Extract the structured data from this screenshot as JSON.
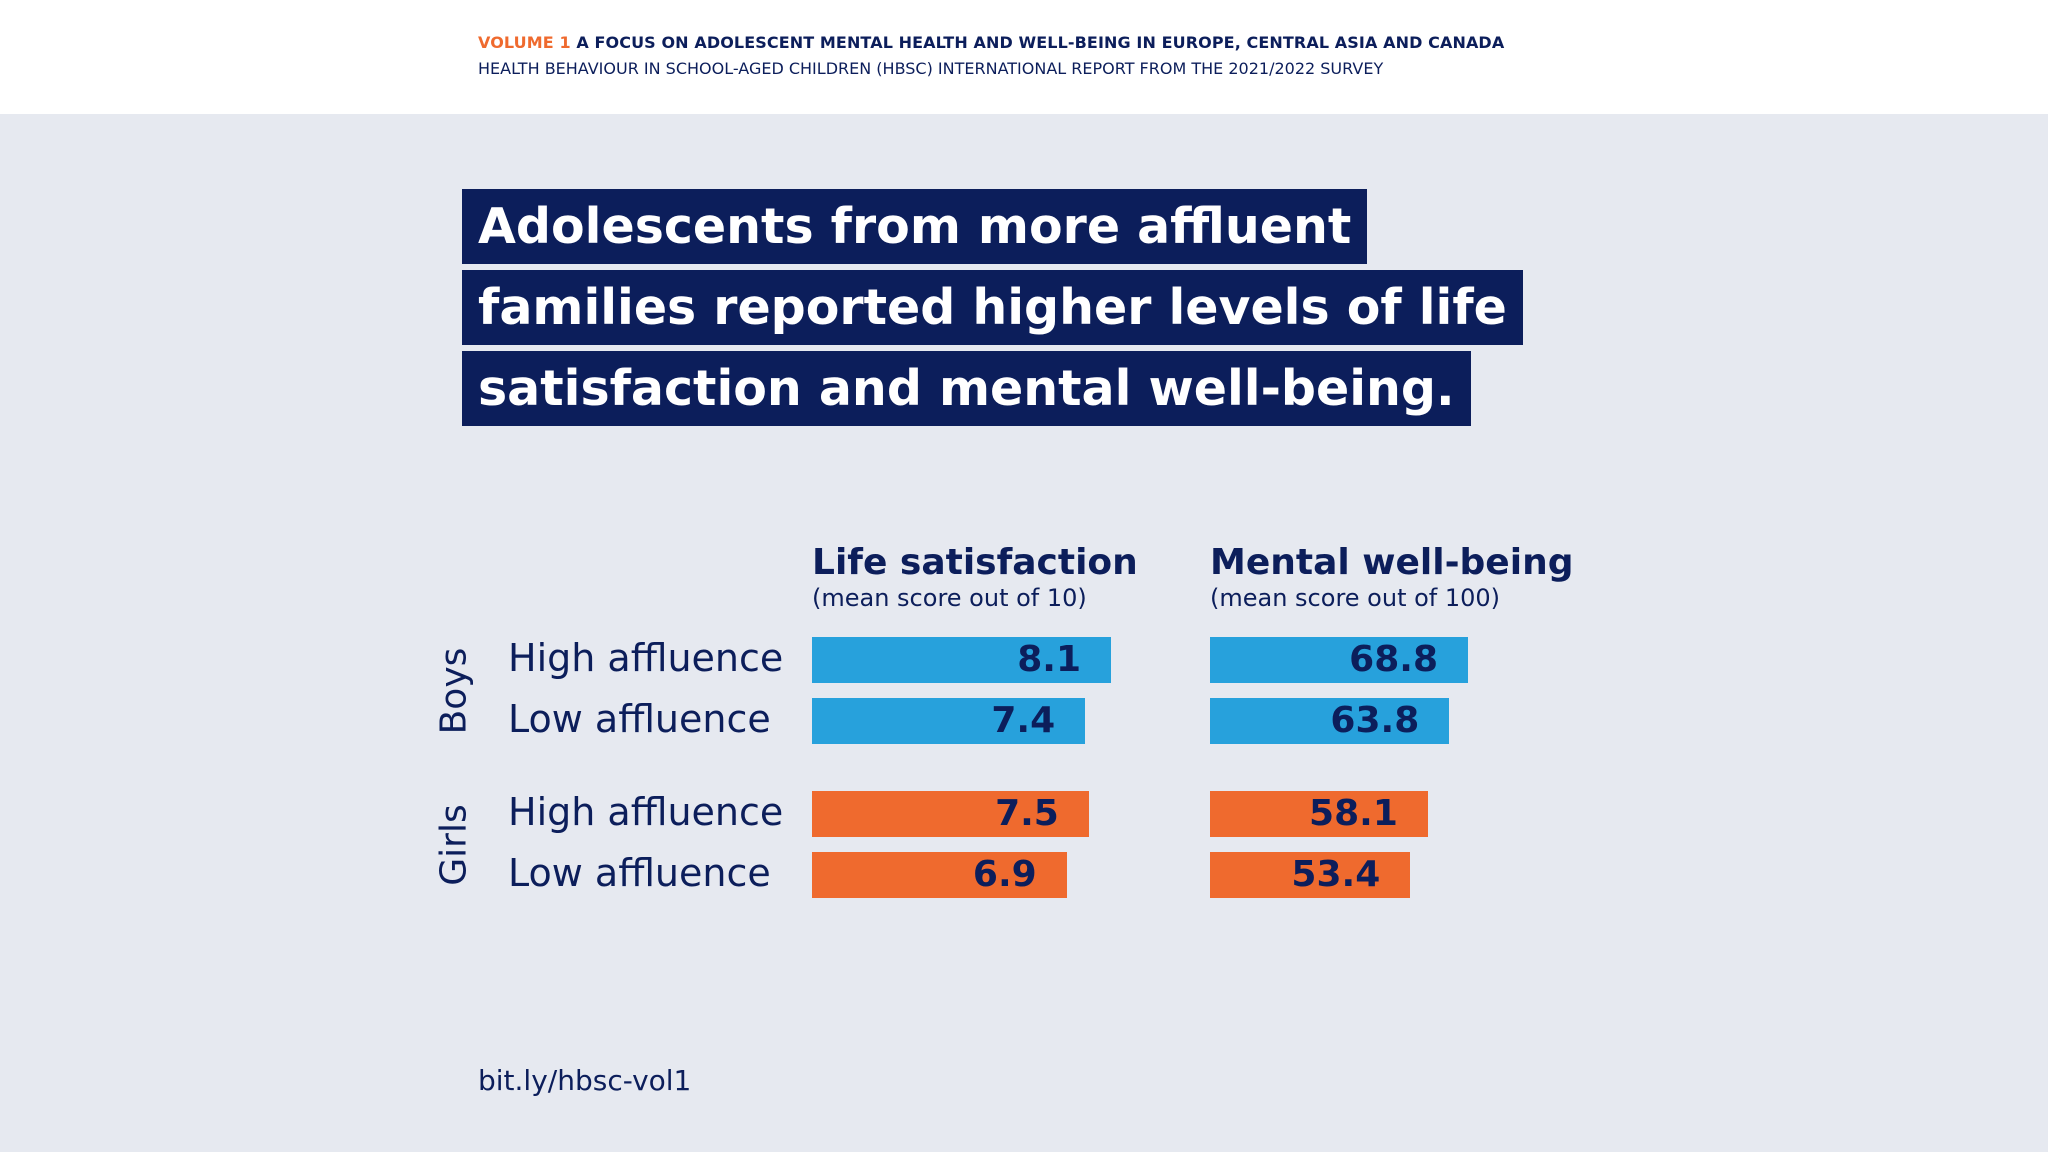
{
  "header": {
    "volume": "VOLUME 1",
    "title": "A FOCUS ON ADOLESCENT MENTAL HEALTH AND WELL-BEING IN EUROPE, CENTRAL ASIA AND CANADA",
    "subtitle": "HEALTH BEHAVIOUR IN SCHOOL-AGED CHILDREN (HBSC) INTERNATIONAL REPORT FROM THE 2021/2022 SURVEY"
  },
  "headline": {
    "line1": "Adolescents from more affluent",
    "line2": "families reported higher levels of life",
    "line3": "satisfaction and mental well-being."
  },
  "footer": {
    "link": "bit.ly/hbsc-vol1"
  },
  "colors": {
    "navy": "#0c1e5b",
    "boys": "#27a1dc",
    "girls": "#ef6a2e",
    "background": "#e6e9f0"
  },
  "chart_data": {
    "type": "bar",
    "orientation": "horizontal",
    "groups": [
      "Boys",
      "Girls"
    ],
    "categories": [
      "High affluence",
      "Low affluence",
      "High affluence",
      "Low affluence"
    ],
    "panels": [
      {
        "title": "Life satisfaction",
        "subtitle": "(mean score out of 10)",
        "max": 10,
        "values": [
          8.1,
          7.4,
          7.5,
          6.9
        ]
      },
      {
        "title": "Mental well-being",
        "subtitle": "(mean score out of 100)",
        "max": 100,
        "values": [
          68.8,
          63.8,
          58.1,
          53.4
        ]
      }
    ],
    "grid": false,
    "legend": "none"
  }
}
